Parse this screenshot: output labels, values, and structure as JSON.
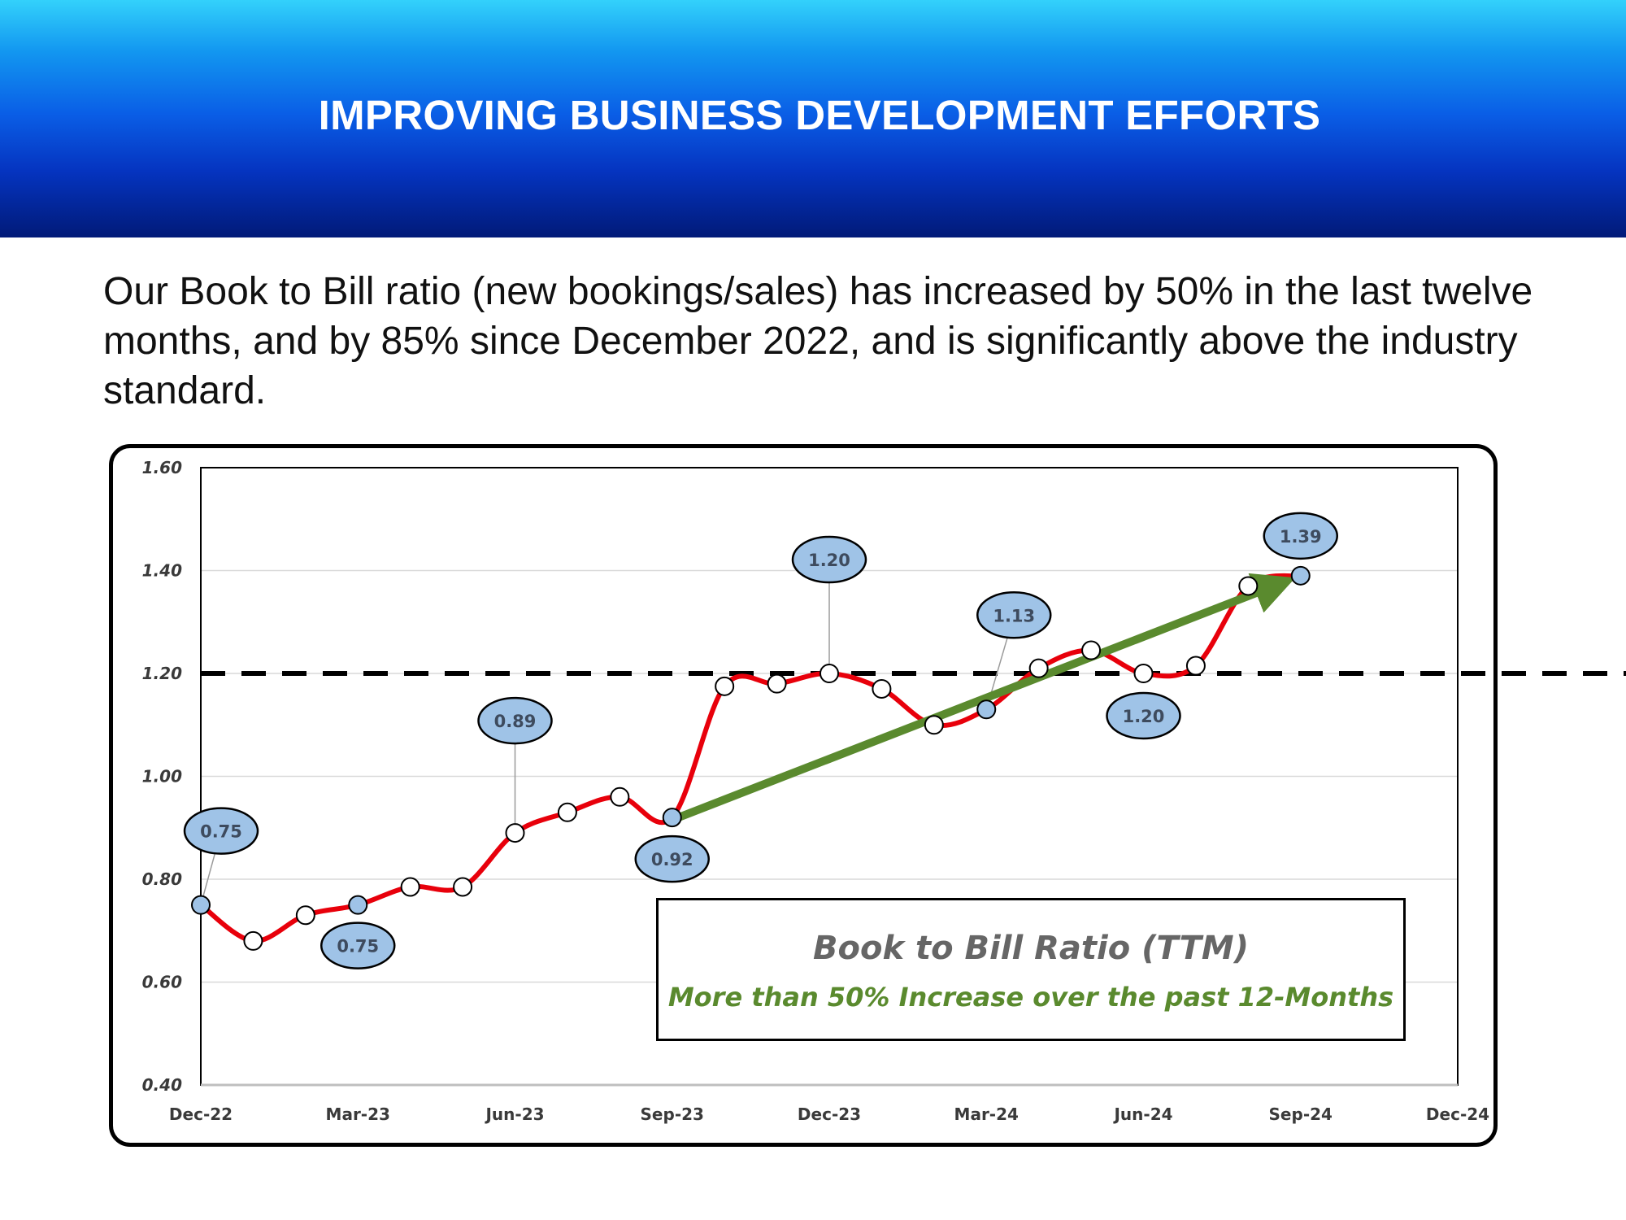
{
  "header": {
    "title": "IMPROVING BUSINESS DEVELOPMENT EFFORTS"
  },
  "intro": {
    "text": "Our Book to Bill ratio (new bookings/sales) has increased by 50% in the last twelve months, and by 85% since December 2022, and is significantly above the industry standard."
  },
  "legend": {
    "title": "Book to Bill Ratio (TTM)",
    "subtitle": "More than 50% Increase over the past 12-Months"
  },
  "colors": {
    "line": "#e8000b",
    "trend_arrow": "#5a8a2e",
    "highlight_marker": "#9fc3e7",
    "plain_marker": "#ffffff",
    "reference_line": "#000000"
  },
  "chart_data": {
    "type": "line",
    "title": "",
    "xlabel": "",
    "ylabel": "",
    "x_tick_labels": [
      "Dec-22",
      "Mar-23",
      "Jun-23",
      "Sep-23",
      "Dec-23",
      "Mar-24",
      "Jun-24",
      "Sep-24",
      "Dec-24"
    ],
    "y_tick_labels": [
      "0.40",
      "0.60",
      "0.80",
      "1.00",
      "1.20",
      "1.40",
      "1.60"
    ],
    "ylim": [
      0.4,
      1.6
    ],
    "xlim": [
      "Dec-22",
      "Dec-24"
    ],
    "grid": true,
    "series": [
      {
        "x": [
          "2022-12-01",
          "2023-01-01",
          "2023-02-01",
          "2023-03-01",
          "2023-04-01",
          "2023-05-01",
          "2023-06-01",
          "2023-07-01",
          "2023-08-01",
          "2023-09-01",
          "2023-10-01",
          "2023-11-01",
          "2023-12-01",
          "2024-01-01",
          "2024-02-01",
          "2024-03-01",
          "2024-04-01",
          "2024-05-01",
          "2024-06-01",
          "2024-07-01",
          "2024-08-01",
          "2024-09-01"
        ],
        "values": [
          0.75,
          0.68,
          0.73,
          0.75,
          0.785,
          0.785,
          0.89,
          0.93,
          0.96,
          0.92,
          1.175,
          1.18,
          1.2,
          1.17,
          1.1,
          1.13,
          1.21,
          1.245,
          1.2,
          1.215,
          1.37,
          1.39
        ],
        "highlighted": [
          true,
          false,
          false,
          true,
          false,
          false,
          false,
          false,
          false,
          true,
          false,
          false,
          false,
          false,
          false,
          true,
          false,
          false,
          false,
          false,
          false,
          true
        ]
      }
    ],
    "reference_line": {
      "value": 1.2,
      "style": "dashed"
    },
    "callouts": [
      {
        "label": "0.75",
        "x": "2022-12-01",
        "value": 0.75
      },
      {
        "label": "0.75",
        "x": "2023-03-01",
        "value": 0.75
      },
      {
        "label": "0.89",
        "x": "2023-06-01",
        "value": 0.89
      },
      {
        "label": "0.92",
        "x": "2023-09-01",
        "value": 0.92
      },
      {
        "label": "1.20",
        "x": "2023-12-01",
        "value": 1.2
      },
      {
        "label": "1.13",
        "x": "2024-03-01",
        "value": 1.13
      },
      {
        "label": "1.20",
        "x": "2024-06-01",
        "value": 1.2
      },
      {
        "label": "1.39",
        "x": "2024-09-01",
        "value": 1.39
      }
    ],
    "trend_arrow": {
      "from": {
        "x": "2023-09-01",
        "value": 0.92
      },
      "to": {
        "x": "2024-09-01",
        "value": 1.39
      }
    },
    "legend_placement": "bottom-right"
  }
}
